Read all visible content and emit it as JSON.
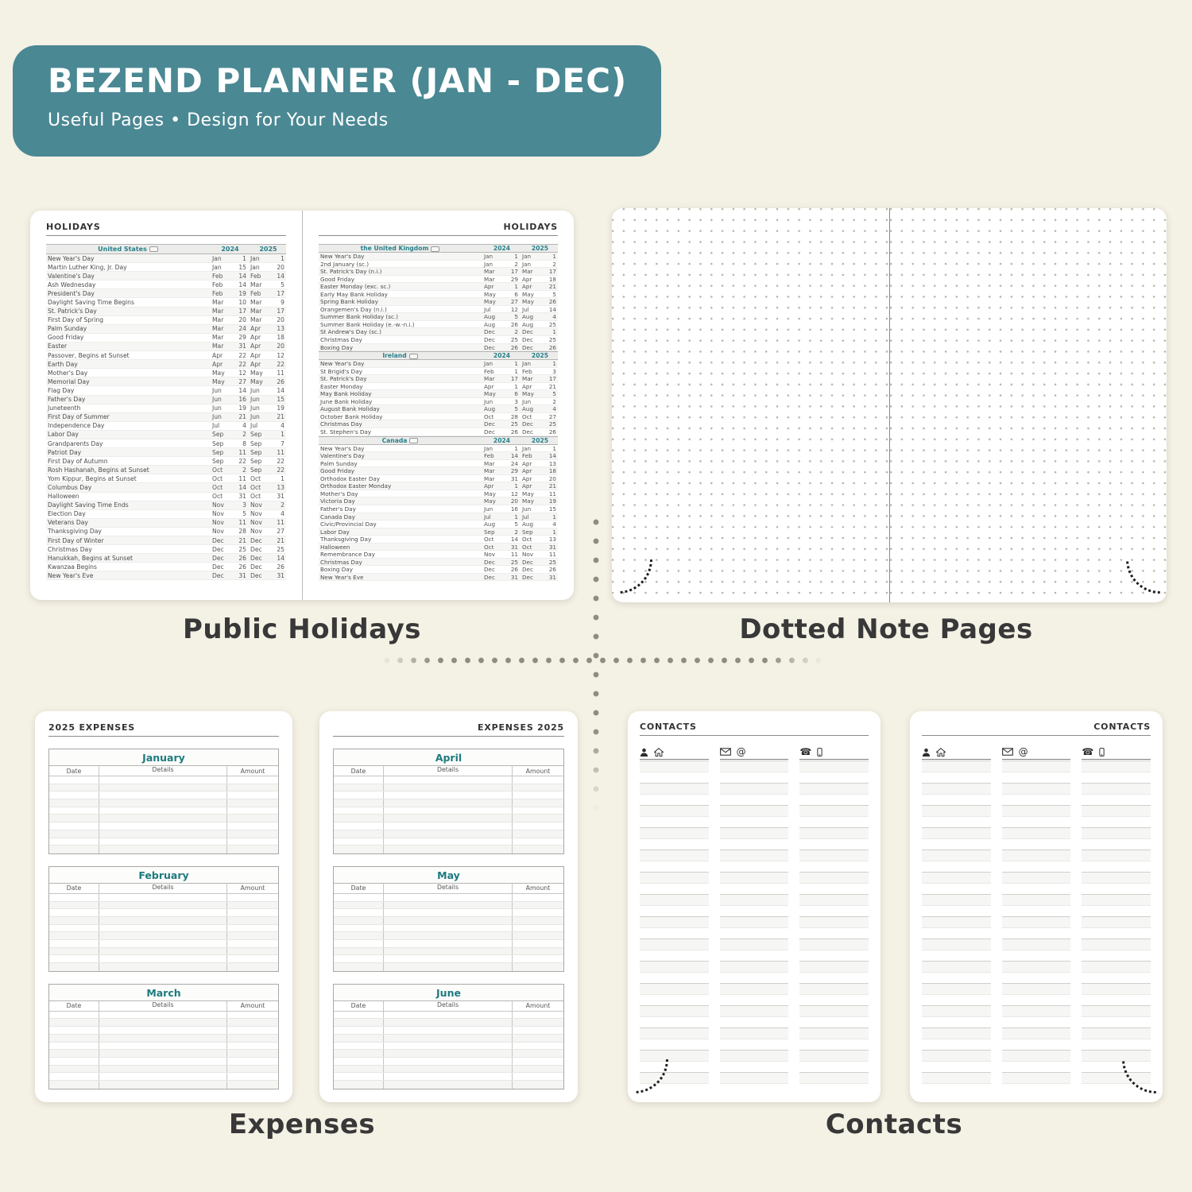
{
  "banner": {
    "title": "BEZEND PLANNER (JAN - DEC)",
    "subtitle": "Useful Pages  •  Design for Your Needs",
    "bg_color": "#4a8893"
  },
  "colors": {
    "page_background": "#f4f1e5",
    "accent_teal": "#27808b",
    "month_teal": "#1d7a7e",
    "caption_gray": "#383838"
  },
  "captions": {
    "holidays": "Public Holidays",
    "notes": "Dotted Note Pages",
    "expenses": "Expenses",
    "contacts": "Contacts"
  },
  "holidays": {
    "left_title": "HOLIDAYS",
    "right_title": "HOLIDAYS",
    "years": [
      "2024",
      "2025"
    ],
    "flag_badge_icon": "flag-badge-icon",
    "left_sections": [
      {
        "country": "United States",
        "rows": [
          [
            "New Year's Day",
            "Jan",
            "1",
            "Jan",
            "1"
          ],
          [
            "Martin Luther King, Jr. Day",
            "Jan",
            "15",
            "Jan",
            "20"
          ],
          [
            "Valentine's Day",
            "Feb",
            "14",
            "Feb",
            "14"
          ],
          [
            "Ash Wednesday",
            "Feb",
            "14",
            "Mar",
            "5"
          ],
          [
            "President's Day",
            "Feb",
            "19",
            "Feb",
            "17"
          ],
          [
            "Daylight Saving Time Begins",
            "Mar",
            "10",
            "Mar",
            "9"
          ],
          [
            "St. Patrick's Day",
            "Mar",
            "17",
            "Mar",
            "17"
          ],
          [
            "First Day of Spring",
            "Mar",
            "20",
            "Mar",
            "20"
          ],
          [
            "Palm Sunday",
            "Mar",
            "24",
            "Apr",
            "13"
          ],
          [
            "Good Friday",
            "Mar",
            "29",
            "Apr",
            "18"
          ],
          [
            "Easter",
            "Mar",
            "31",
            "Apr",
            "20"
          ],
          [
            "Passover, Begins at Sunset",
            "Apr",
            "22",
            "Apr",
            "12"
          ],
          [
            "Earth Day",
            "Apr",
            "22",
            "Apr",
            "22"
          ],
          [
            "Mother's Day",
            "May",
            "12",
            "May",
            "11"
          ],
          [
            "Memorial Day",
            "May",
            "27",
            "May",
            "26"
          ],
          [
            "Flag Day",
            "Jun",
            "14",
            "Jun",
            "14"
          ],
          [
            "Father's Day",
            "Jun",
            "16",
            "Jun",
            "15"
          ],
          [
            "Juneteenth",
            "Jun",
            "19",
            "Jun",
            "19"
          ],
          [
            "First Day of Summer",
            "Jun",
            "21",
            "Jun",
            "21"
          ],
          [
            "Independence Day",
            "Jul",
            "4",
            "Jul",
            "4"
          ],
          [
            "Labor Day",
            "Sep",
            "2",
            "Sep",
            "1"
          ],
          [
            "Grandparents Day",
            "Sep",
            "8",
            "Sep",
            "7"
          ],
          [
            "Patriot Day",
            "Sep",
            "11",
            "Sep",
            "11"
          ],
          [
            "First Day of Autumn",
            "Sep",
            "22",
            "Sep",
            "22"
          ],
          [
            "Rosh Hashanah, Begins at Sunset",
            "Oct",
            "2",
            "Sep",
            "22"
          ],
          [
            "Yom Kippur, Begins at Sunset",
            "Oct",
            "11",
            "Oct",
            "1"
          ],
          [
            "Columbus Day",
            "Oct",
            "14",
            "Oct",
            "13"
          ],
          [
            "Halloween",
            "Oct",
            "31",
            "Oct",
            "31"
          ],
          [
            "Daylight Saving Time Ends",
            "Nov",
            "3",
            "Nov",
            "2"
          ],
          [
            "Election Day",
            "Nov",
            "5",
            "Nov",
            "4"
          ],
          [
            "Veterans Day",
            "Nov",
            "11",
            "Nov",
            "11"
          ],
          [
            "Thanksgiving Day",
            "Nov",
            "28",
            "Nov",
            "27"
          ],
          [
            "First Day of Winter",
            "Dec",
            "21",
            "Dec",
            "21"
          ],
          [
            "Christmas Day",
            "Dec",
            "25",
            "Dec",
            "25"
          ],
          [
            "Hanukkah, Begins at Sunset",
            "Dec",
            "26",
            "Dec",
            "14"
          ],
          [
            "Kwanzaa Begins",
            "Dec",
            "26",
            "Dec",
            "26"
          ],
          [
            "New Year's Eve",
            "Dec",
            "31",
            "Dec",
            "31"
          ]
        ]
      }
    ],
    "right_sections": [
      {
        "country": "the United Kingdom",
        "rows": [
          [
            "New Year's Day",
            "Jan",
            "1",
            "Jan",
            "1"
          ],
          [
            "2nd January (sc.)",
            "Jan",
            "2",
            "Jan",
            "2"
          ],
          [
            "St. Patrick's Day (n.i.)",
            "Mar",
            "17",
            "Mar",
            "17"
          ],
          [
            "Good Friday",
            "Mar",
            "29",
            "Apr",
            "18"
          ],
          [
            "Easter Monday (exc. sc.)",
            "Apr",
            "1",
            "Apr",
            "21"
          ],
          [
            "Early May Bank Holiday",
            "May",
            "6",
            "May",
            "5"
          ],
          [
            "Spring Bank Holiday",
            "May",
            "27",
            "May",
            "26"
          ],
          [
            "Orangemen's Day (n.i.)",
            "Jul",
            "12",
            "Jul",
            "14"
          ],
          [
            "Summer Bank Holiday (sc.)",
            "Aug",
            "5",
            "Aug",
            "4"
          ],
          [
            "Summer Bank Holiday (e.-w.-n.i.)",
            "Aug",
            "26",
            "Aug",
            "25"
          ],
          [
            "St Andrew's Day (sc.)",
            "Dec",
            "2",
            "Dec",
            "1"
          ],
          [
            "Christmas Day",
            "Dec",
            "25",
            "Dec",
            "25"
          ],
          [
            "Boxing Day",
            "Dec",
            "26",
            "Dec",
            "26"
          ]
        ]
      },
      {
        "country": "Ireland",
        "rows": [
          [
            "New Year's Day",
            "Jan",
            "1",
            "Jan",
            "1"
          ],
          [
            "St Brigid's Day",
            "Feb",
            "1",
            "Feb",
            "3"
          ],
          [
            "St. Patrick's Day",
            "Mar",
            "17",
            "Mar",
            "17"
          ],
          [
            "Easter Monday",
            "Apr",
            "1",
            "Apr",
            "21"
          ],
          [
            "May Bank Holiday",
            "May",
            "6",
            "May",
            "5"
          ],
          [
            "June Bank Holiday",
            "Jun",
            "3",
            "Jun",
            "2"
          ],
          [
            "August Bank Holiday",
            "Aug",
            "5",
            "Aug",
            "4"
          ],
          [
            "October Bank Holiday",
            "Oct",
            "28",
            "Oct",
            "27"
          ],
          [
            "Christmas Day",
            "Dec",
            "25",
            "Dec",
            "25"
          ],
          [
            "St. Stephen's Day",
            "Dec",
            "26",
            "Dec",
            "26"
          ]
        ]
      },
      {
        "country": "Canada",
        "rows": [
          [
            "New Year's Day",
            "Jan",
            "1",
            "Jan",
            "1"
          ],
          [
            "Valentine's Day",
            "Feb",
            "14",
            "Feb",
            "14"
          ],
          [
            "Palm Sunday",
            "Mar",
            "24",
            "Apr",
            "13"
          ],
          [
            "Good Friday",
            "Mar",
            "29",
            "Apr",
            "18"
          ],
          [
            "Orthodox Easter Day",
            "Mar",
            "31",
            "Apr",
            "20"
          ],
          [
            "Orthodox Easter Monday",
            "Apr",
            "1",
            "Apr",
            "21"
          ],
          [
            "Mother's Day",
            "May",
            "12",
            "May",
            "11"
          ],
          [
            "Victoria Day",
            "May",
            "20",
            "May",
            "19"
          ],
          [
            "Father's Day",
            "Jun",
            "16",
            "Jun",
            "15"
          ],
          [
            "Canada Day",
            "Jul",
            "1",
            "Jul",
            "1"
          ],
          [
            "Civic/Provincial Day",
            "Aug",
            "5",
            "Aug",
            "4"
          ],
          [
            "Labor Day",
            "Sep",
            "2",
            "Sep",
            "1"
          ],
          [
            "Thanksgiving Day",
            "Oct",
            "14",
            "Oct",
            "13"
          ],
          [
            "Halloween",
            "Oct",
            "31",
            "Oct",
            "31"
          ],
          [
            "Remembrance Day",
            "Nov",
            "11",
            "Nov",
            "11"
          ],
          [
            "Christmas Day",
            "Dec",
            "25",
            "Dec",
            "25"
          ],
          [
            "Boxing Day",
            "Dec",
            "26",
            "Dec",
            "26"
          ],
          [
            "New Year's Eve",
            "Dec",
            "31",
            "Dec",
            "31"
          ]
        ]
      }
    ]
  },
  "expenses": {
    "left_title": "2025 EXPENSES",
    "right_title": "EXPENSES 2025",
    "columns": [
      "Date",
      "Details",
      "Amount"
    ],
    "left_months": [
      "January",
      "February",
      "March"
    ],
    "right_months": [
      "April",
      "May",
      "June"
    ],
    "empty_rows": 10
  },
  "contacts": {
    "left_title": "CONTACTS",
    "right_title": "CONTACTS",
    "columns": [
      {
        "icons": [
          "person-icon",
          "home-icon"
        ]
      },
      {
        "icons": [
          "mail-icon",
          "at-icon"
        ]
      },
      {
        "icons": [
          "phone-icon",
          "mobile-icon"
        ]
      }
    ]
  }
}
